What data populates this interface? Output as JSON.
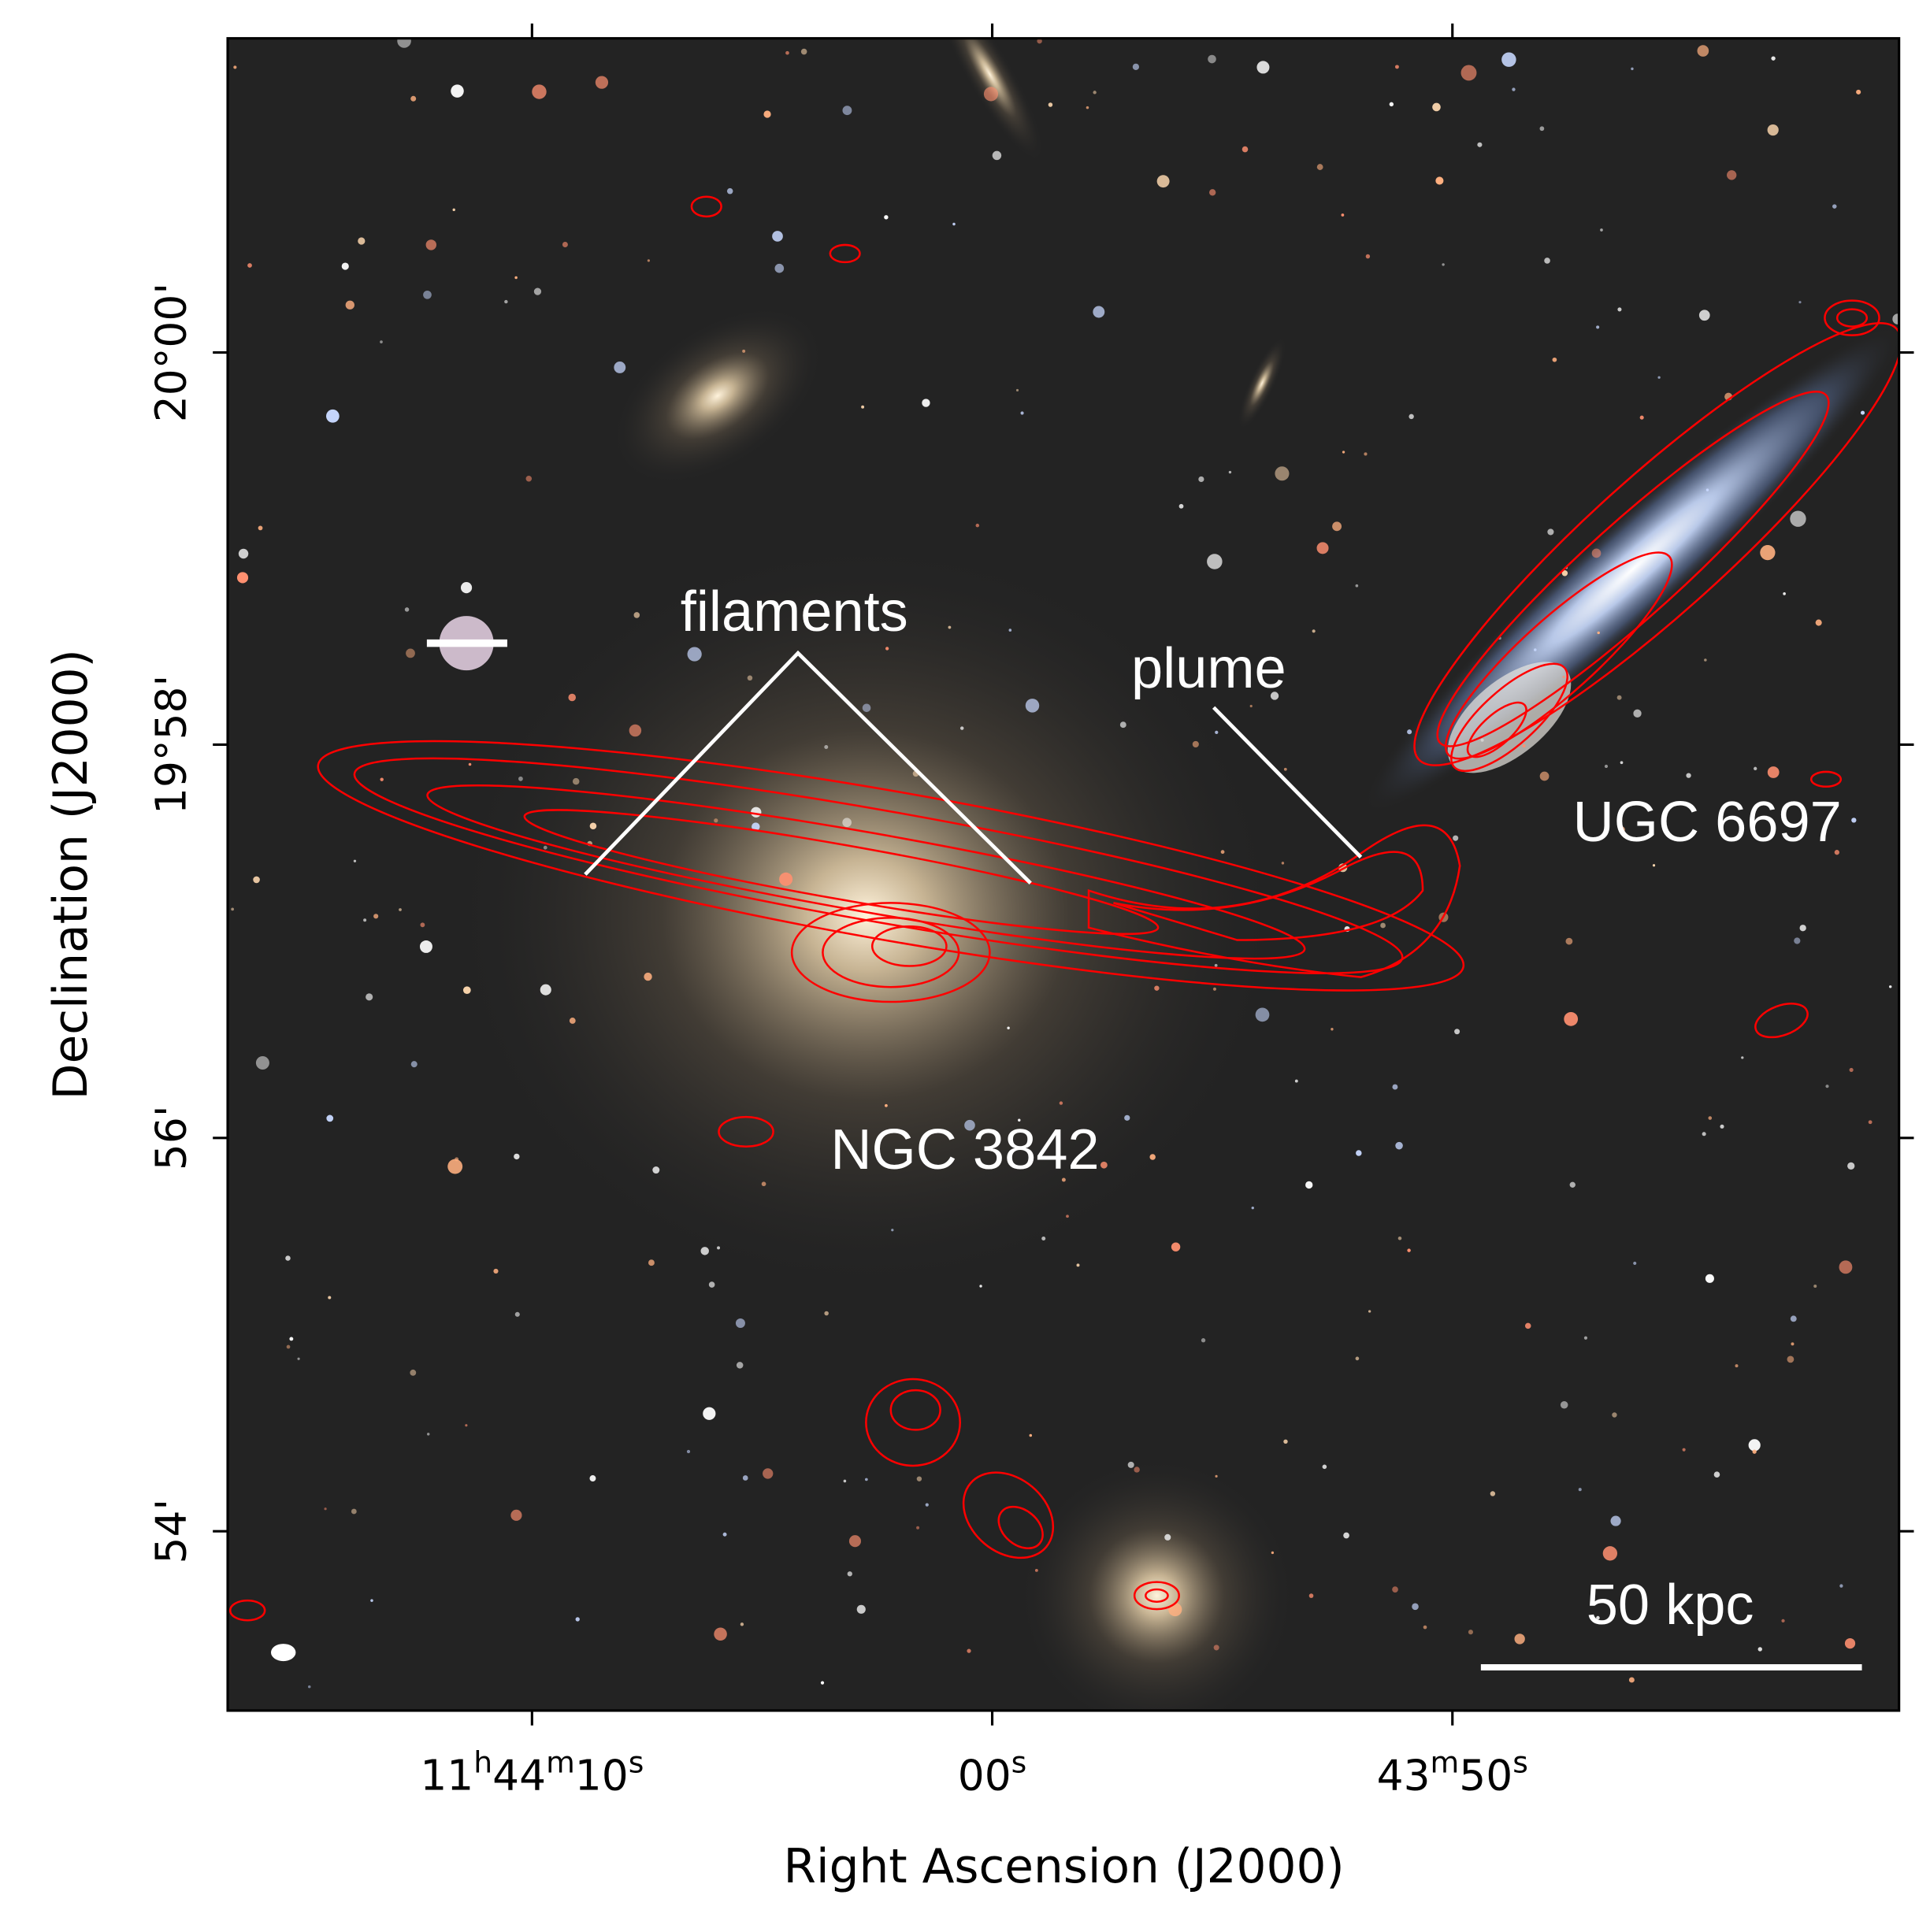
{
  "figure": {
    "x_axis_label": "Right Ascension (J2000)",
    "y_axis_label": "Declination (J2000)",
    "x_tick_labels": [
      [
        "11",
        "h",
        "44",
        "m",
        "10",
        "s"
      ],
      [
        "00",
        "s"
      ],
      [
        "43",
        "m",
        "50",
        "s"
      ]
    ],
    "y_tick_labels": [
      "20°00'",
      "19°58'",
      "56'",
      "54'"
    ],
    "annotations": [
      "filaments",
      "plume",
      "UGC 6697",
      "NGC 3842"
    ],
    "scale_bar": "50 kpc"
  }
}
